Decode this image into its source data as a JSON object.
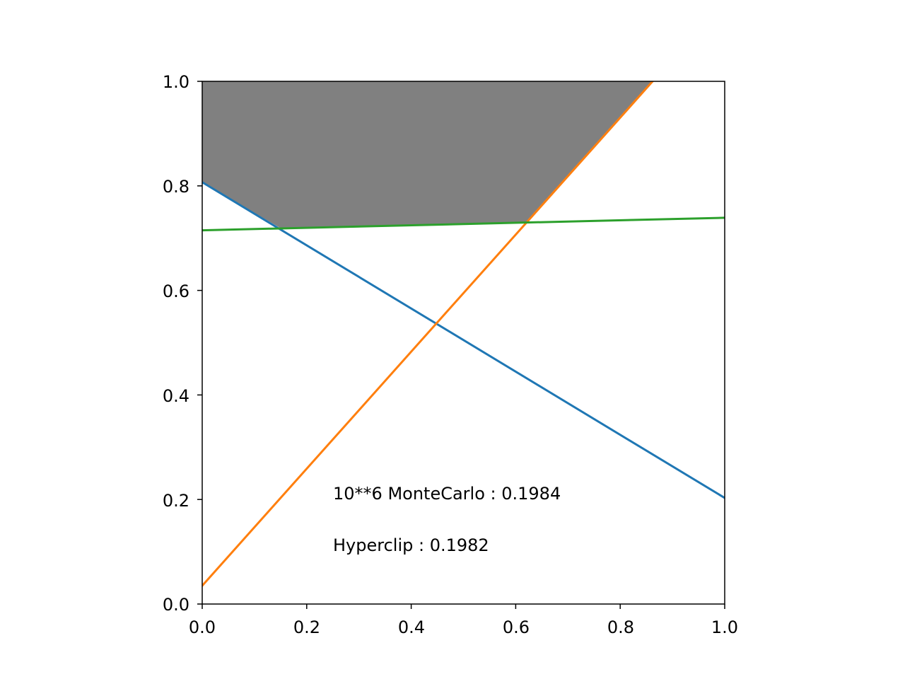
{
  "chart_data": {
    "type": "line",
    "title": "",
    "xlabel": "",
    "ylabel": "",
    "xlim": [
      0.0,
      1.0
    ],
    "ylim": [
      0.0,
      1.0
    ],
    "x_ticks": [
      "0.0",
      "0.2",
      "0.4",
      "0.6",
      "0.8",
      "1.0"
    ],
    "y_ticks": [
      "0.0",
      "0.2",
      "0.4",
      "0.6",
      "0.8",
      "1.0"
    ],
    "grid": false,
    "legend": "none",
    "lines": [
      {
        "x": [
          0.0,
          1.0
        ],
        "y": [
          0.807,
          0.203
        ],
        "color": "#1f77b4"
      },
      {
        "x": [
          0.0,
          0.862
        ],
        "y": [
          0.035,
          1.0
        ],
        "color": "#ff7f0e"
      },
      {
        "x": [
          0.0,
          1.0
        ],
        "y": [
          0.715,
          0.739
        ],
        "color": "#2ca02c"
      }
    ],
    "shaded_region": {
      "x": [
        0.0,
        0.0,
        0.862,
        0.623,
        0.152
      ],
      "y": [
        1.0,
        0.807,
        1.0,
        0.73,
        0.718
      ],
      "order": [
        0,
        2,
        3,
        4,
        1
      ],
      "color": "#808080"
    },
    "annotations": [
      {
        "text": "10**6 MonteCarlo : 0.1984",
        "x": 0.25,
        "y": 0.2
      },
      {
        "text": "Hyperclip : 0.1982",
        "x": 0.25,
        "y": 0.1
      }
    ]
  }
}
